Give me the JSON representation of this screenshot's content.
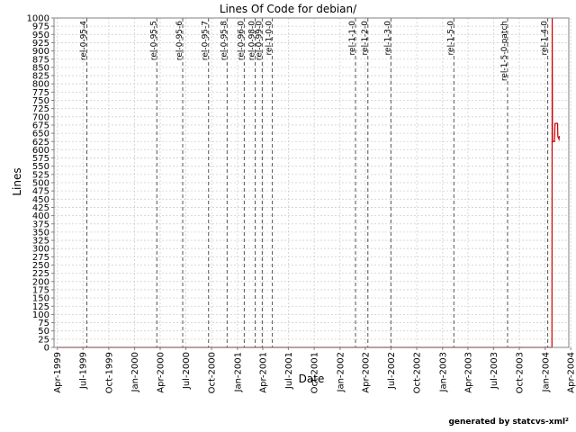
{
  "chart_data": {
    "type": "line",
    "title": "Lines Of Code for debian/",
    "xlabel": "Date",
    "ylabel": "Lines",
    "ylim": [
      0,
      1000
    ],
    "yticks": [
      0,
      25,
      50,
      75,
      100,
      125,
      150,
      175,
      200,
      225,
      250,
      275,
      300,
      325,
      350,
      375,
      400,
      425,
      450,
      475,
      500,
      525,
      550,
      575,
      600,
      625,
      650,
      675,
      700,
      725,
      750,
      775,
      800,
      825,
      850,
      875,
      900,
      925,
      950,
      975,
      1000
    ],
    "xlim": [
      "1999-03-20",
      "2004-03-25"
    ],
    "xticks": [
      {
        "date": "1999-04-01",
        "label": "Apr-1999"
      },
      {
        "date": "1999-07-01",
        "label": "Jul-1999"
      },
      {
        "date": "1999-10-01",
        "label": "Oct-1999"
      },
      {
        "date": "2000-01-01",
        "label": "Jan-2000"
      },
      {
        "date": "2000-04-01",
        "label": "Apr-2000"
      },
      {
        "date": "2000-07-01",
        "label": "Jul-2000"
      },
      {
        "date": "2000-10-01",
        "label": "Oct-2000"
      },
      {
        "date": "2001-01-01",
        "label": "Jan-2001"
      },
      {
        "date": "2001-04-01",
        "label": "Apr-2001"
      },
      {
        "date": "2001-07-01",
        "label": "Jul-2001"
      },
      {
        "date": "2001-10-01",
        "label": "Oct-2001"
      },
      {
        "date": "2002-01-01",
        "label": "Jan-2002"
      },
      {
        "date": "2002-04-01",
        "label": "Apr-2002"
      },
      {
        "date": "2002-07-01",
        "label": "Jul-2002"
      },
      {
        "date": "2002-10-01",
        "label": "Oct-2002"
      },
      {
        "date": "2003-01-01",
        "label": "Jan-2003"
      },
      {
        "date": "2003-04-01",
        "label": "Apr-2003"
      },
      {
        "date": "2003-07-01",
        "label": "Jul-2003"
      },
      {
        "date": "2003-10-01",
        "label": "Oct-2003"
      },
      {
        "date": "2004-01-01",
        "label": "Jan-2004"
      },
      {
        "date": "2004-04-01",
        "label": "Apr-2004"
      }
    ],
    "grid": true,
    "series": [
      {
        "color": "#cc0000",
        "points": [
          [
            "1999-04-01",
            0
          ],
          [
            "2004-01-25",
            0
          ],
          [
            "2004-01-26",
            1000
          ],
          [
            "2004-01-27",
            625
          ],
          [
            "2004-02-03",
            625
          ],
          [
            "2004-02-04",
            650
          ],
          [
            "2004-02-05",
            680
          ],
          [
            "2004-02-14",
            680
          ],
          [
            "2004-02-15",
            640
          ],
          [
            "2004-02-19",
            632
          ],
          [
            "2004-02-20",
            640
          ],
          [
            "2004-02-22",
            640
          ]
        ]
      }
    ],
    "markers": [
      {
        "date": "1999-07-15",
        "label": "rel-0-95-4"
      },
      {
        "date": "2000-03-20",
        "label": "rel-0-95-5"
      },
      {
        "date": "2000-06-20",
        "label": "rel-0-95-6"
      },
      {
        "date": "2000-09-20",
        "label": "rel-0-95-7"
      },
      {
        "date": "2000-11-25",
        "label": "rel-0-95-8"
      },
      {
        "date": "2001-01-25",
        "label": "rel-0-96-0"
      },
      {
        "date": "2001-03-05",
        "label": "rel-0-98-0"
      },
      {
        "date": "2001-03-30",
        "label": "rel-0-99-0"
      },
      {
        "date": "2001-05-05",
        "label": "rel-1-0-0"
      },
      {
        "date": "2002-02-25",
        "label": "rel-1-1-0"
      },
      {
        "date": "2002-04-10",
        "label": "rel-1-2-0"
      },
      {
        "date": "2002-07-01",
        "label": "rel-1-3-0"
      },
      {
        "date": "2003-02-10",
        "label": "rel-1-5-0"
      },
      {
        "date": "2003-08-20",
        "label": "rel-1-5-0-patch"
      },
      {
        "date": "2004-01-10",
        "label": "rel-1-4-0"
      }
    ]
  },
  "footer": "generated by statcvs-xml²"
}
